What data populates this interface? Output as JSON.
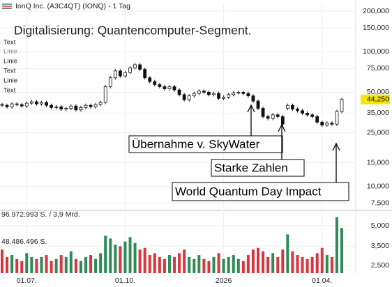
{
  "chart_data": {
    "type": "candlestick",
    "header": "IonQ Inc. (A3C4QT) (IONQ) - 1 Tag",
    "title": "Digitalisierung: Quantencomputer-Segment.",
    "legend_texts": [
      "Text",
      "Linie",
      "Linie",
      "Text",
      "Linie",
      "Text"
    ],
    "categories": [
      null,
      null,
      null,
      null,
      null,
      "01.07.",
      null,
      null,
      null,
      null,
      null,
      null,
      null,
      null,
      null,
      null,
      null,
      null,
      null,
      null,
      null,
      null,
      null,
      null,
      null,
      "01.10.",
      null,
      null,
      null,
      null,
      null,
      null,
      null,
      null,
      null,
      null,
      null,
      null,
      null,
      null,
      null,
      null,
      null,
      null,
      null,
      "2026",
      null,
      null,
      null,
      null,
      null,
      null,
      null,
      null,
      null,
      null,
      null,
      null,
      null,
      null,
      null,
      null,
      null,
      null,
      null,
      "01.04.",
      null,
      null,
      null,
      null
    ],
    "open": [
      40500,
      40000,
      39000,
      41000,
      40500,
      39500,
      41500,
      42500,
      41000,
      42000,
      40000,
      38500,
      39000,
      37500,
      38000,
      39500,
      37000,
      38500,
      40000,
      39000,
      40500,
      42000,
      55000,
      64000,
      72000,
      66000,
      70000,
      76000,
      80000,
      74000,
      64000,
      60000,
      57000,
      55000,
      53000,
      55000,
      52000,
      48000,
      44000,
      47000,
      49000,
      51000,
      50000,
      48000,
      49000,
      45000,
      46000,
      48000,
      49500,
      50000,
      49000,
      47000,
      43000,
      38000,
      33000,
      32000,
      34000,
      33000,
      38000,
      40000,
      37500,
      36500,
      35000,
      34000,
      33000,
      30000,
      28500,
      29500,
      29000,
      36000
    ],
    "high": [
      41700,
      41200,
      42200,
      42200,
      41700,
      42700,
      43800,
      43800,
      43300,
      43300,
      41200,
      40200,
      40200,
      39100,
      40700,
      40700,
      39700,
      41200,
      41200,
      41700,
      43300,
      56700,
      65900,
      74200,
      74200,
      72100,
      78300,
      82400,
      82400,
      76200,
      65900,
      61800,
      58700,
      56700,
      56700,
      56700,
      53600,
      49400,
      48400,
      50500,
      52500,
      52500,
      51500,
      50500,
      50500,
      47400,
      49400,
      51000,
      51500,
      51500,
      50500,
      48400,
      44300,
      39100,
      34000,
      35000,
      35000,
      34000,
      41200,
      41200,
      38600,
      37600,
      36100,
      35000,
      34000,
      30900,
      30400,
      30400,
      37100,
      45600
    ],
    "low": [
      38800,
      37800,
      37800,
      39300,
      38300,
      38300,
      40300,
      39800,
      39800,
      38800,
      37300,
      37300,
      36400,
      36400,
      36900,
      35900,
      35900,
      37300,
      37800,
      37800,
      39300,
      40700,
      53400,
      62100,
      64000,
      64000,
      67900,
      73700,
      71800,
      62100,
      58200,
      55300,
      53400,
      51400,
      51400,
      50400,
      46600,
      42700,
      42700,
      45600,
      47500,
      48500,
      46600,
      46600,
      43700,
      43700,
      44600,
      46600,
      48000,
      47500,
      45600,
      41700,
      36900,
      32000,
      31000,
      31000,
      32000,
      28100,
      36900,
      36400,
      35400,
      34000,
      33000,
      32000,
      29100,
      27600,
      27600,
      28100,
      28100,
      34900
    ],
    "close": [
      40000,
      39000,
      41000,
      40500,
      39500,
      41500,
      42500,
      41000,
      42000,
      40000,
      38500,
      39000,
      37500,
      38000,
      39500,
      37000,
      38500,
      40000,
      39000,
      40500,
      42000,
      55000,
      64000,
      72000,
      66000,
      70000,
      76000,
      80000,
      74000,
      64000,
      60000,
      57000,
      55000,
      53000,
      55000,
      52000,
      48000,
      44000,
      47000,
      49000,
      51000,
      50000,
      48000,
      49000,
      45000,
      46000,
      48000,
      49500,
      50000,
      49000,
      47000,
      43000,
      38000,
      33000,
      32000,
      34000,
      33000,
      29000,
      40000,
      37500,
      36500,
      35000,
      34000,
      33000,
      30000,
      28500,
      29500,
      29000,
      36000,
      44250
    ],
    "close_label": "44,250",
    "up_color": "#2e8b57",
    "down_color": "#d9363e",
    "candle_color": "#111111",
    "log_scale": true,
    "grid": true,
    "ylim": [
      6800,
      228000
    ],
    "yticks": [
      {
        "value": 200000,
        "label": "200,000"
      },
      {
        "value": 150000,
        "label": "150,000"
      },
      {
        "value": 100000,
        "label": "100,000"
      },
      {
        "value": 75000,
        "label": "75,000"
      },
      {
        "value": 50000,
        "label": "50,000"
      },
      {
        "value": 35000,
        "label": "35,000"
      },
      {
        "value": 25000,
        "label": "25,000"
      },
      {
        "value": 15000,
        "label": "15,000"
      },
      {
        "value": 10000,
        "label": "10,000"
      },
      {
        "value": 7500,
        "label": "7,500"
      }
    ],
    "volume": {
      "values": [
        3300,
        2900,
        3000,
        2800,
        2700,
        3100,
        2900,
        2800,
        2900,
        3000,
        2700,
        2800,
        3000,
        2900,
        3200,
        2800,
        2700,
        2900,
        3000,
        2800,
        3100,
        4200,
        4000,
        3600,
        3500,
        3800,
        4100,
        3700,
        3300,
        3400,
        3000,
        3100,
        2900,
        2800,
        3000,
        2900,
        3100,
        3300,
        2900,
        2800,
        3000,
        2800,
        2700,
        2900,
        3100,
        2800,
        2900,
        3000,
        2800,
        2700,
        3000,
        3300,
        3400,
        3200,
        2900,
        3100,
        2900,
        3300,
        4300,
        3200,
        3000,
        2900,
        2800,
        2900,
        3100,
        3400,
        3000,
        2900,
        5800,
        4800
      ],
      "ylim": [
        2190,
        6300
      ],
      "yticks": [
        {
          "value": 5000,
          "label": "5,000"
        },
        {
          "value": 3500,
          "label": "3,500"
        },
        {
          "value": 2500,
          "label": "2,500"
        }
      ],
      "labels": [
        "96.972.993 S. / 3,9 Mrd.",
        "48.486.496 S."
      ]
    },
    "annotations": [
      "Übernahme v. SkyWater",
      "Starke Zahlen",
      "World Quantum Day Impact"
    ]
  }
}
